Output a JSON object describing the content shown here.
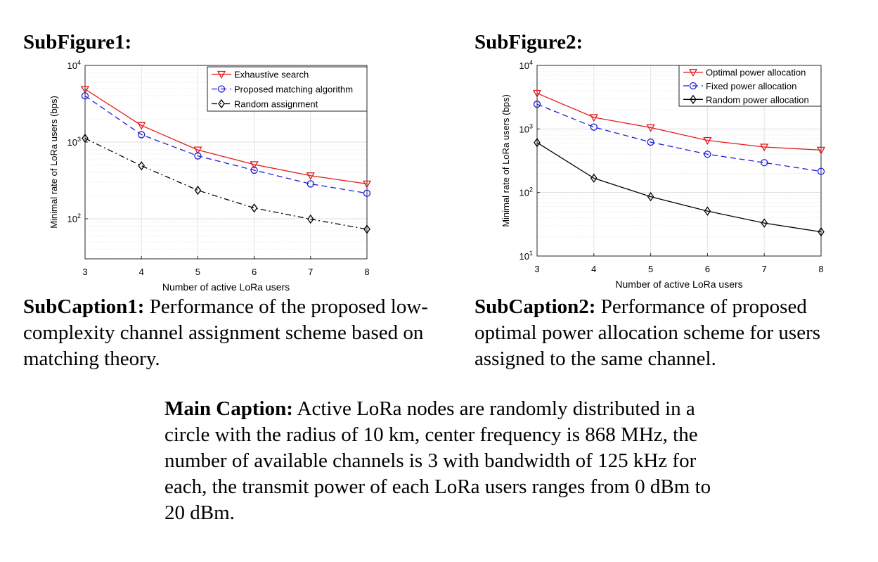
{
  "subfigure1": {
    "label": "SubFigure1:",
    "caption_head": "SubCaption1:",
    "caption_text": "Performance of the proposed low-complexity channel assignment scheme based on matching theory."
  },
  "subfigure2": {
    "label": "SubFigure2:",
    "caption_head": "SubCaption2:",
    "caption_text": "Performance of proposed optimal power allocation scheme for users assigned to the same channel."
  },
  "main_caption": {
    "head": "Main Caption:",
    "text": "Active LoRa nodes are randomly distributed in a circle with the radius of 10 km, center frequency is 868 MHz, the number of available channels is 3 with bandwidth of 125 kHz for each, the transmit power of each LoRa users ranges from 0 dBm to 20 dBm."
  },
  "chart_data": [
    {
      "type": "line",
      "xlabel": "Number of active LoRa users",
      "ylabel": "Minimal rate of LoRa users (bps)",
      "x": [
        3,
        4,
        5,
        6,
        7,
        8
      ],
      "xlim": [
        3,
        8
      ],
      "ylim": [
        30,
        10000
      ],
      "yscale": "log",
      "yticks": [
        100,
        1000,
        10000
      ],
      "grid": true,
      "legend_position": "top-right",
      "series": [
        {
          "name": "Exhaustive search",
          "values": [
            4900,
            1650,
            790,
            510,
            365,
            285
          ],
          "color": "#e41a1c",
          "marker": "triangle-down",
          "dash": "solid"
        },
        {
          "name": "Proposed matching algorithm",
          "values": [
            4000,
            1250,
            660,
            430,
            285,
            215
          ],
          "color": "#1f1fd6",
          "marker": "circle",
          "dash": "dashed"
        },
        {
          "name": "Random assignment",
          "values": [
            1120,
            490,
            235,
            138,
            99,
            73
          ],
          "color": "#000000",
          "marker": "diamond",
          "dash": "dashdot"
        }
      ]
    },
    {
      "type": "line",
      "xlabel": "Number of active LoRa users",
      "ylabel": "Minimal rate of LoRa users (bps)",
      "x": [
        3,
        4,
        5,
        6,
        7,
        8
      ],
      "xlim": [
        3,
        8
      ],
      "ylim": [
        10,
        10000
      ],
      "yscale": "log",
      "yticks": [
        10,
        100,
        1000,
        10000
      ],
      "grid": true,
      "legend_position": "top-right",
      "series": [
        {
          "name": "Optimal power allocation",
          "values": [
            3650,
            1520,
            1050,
            660,
            520,
            465
          ],
          "color": "#e41a1c",
          "marker": "triangle-down",
          "dash": "solid"
        },
        {
          "name": "Fixed power allocation",
          "values": [
            2450,
            1070,
            620,
            400,
            295,
            215
          ],
          "color": "#1f1fd6",
          "marker": "circle",
          "dash": "dashed"
        },
        {
          "name": "Random power allocation",
          "values": [
            610,
            168,
            86,
            51,
            33,
            24
          ],
          "color": "#000000",
          "marker": "diamond",
          "dash": "solid"
        }
      ]
    }
  ]
}
